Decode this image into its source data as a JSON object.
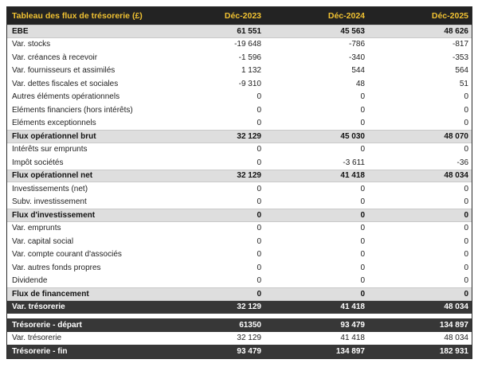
{
  "table": {
    "title": "Tableau des flux de trésorerie (£)",
    "columns": [
      "Déc-2023",
      "Déc-2024",
      "Déc-2025"
    ],
    "rows": [
      {
        "label": "EBE",
        "values": [
          "61 551",
          "45 563",
          "48 626"
        ],
        "style": "subtotal"
      },
      {
        "label": "Var. stocks",
        "values": [
          "-19 648",
          "-786",
          "-817"
        ],
        "style": "normal"
      },
      {
        "label": "Var. créances à recevoir",
        "values": [
          "-1 596",
          "-340",
          "-353"
        ],
        "style": "normal"
      },
      {
        "label": "Var. fournisseurs et assimilés",
        "values": [
          "1 132",
          "544",
          "564"
        ],
        "style": "normal"
      },
      {
        "label": "Var. dettes fiscales et sociales",
        "values": [
          "-9 310",
          "48",
          "51"
        ],
        "style": "normal"
      },
      {
        "label": "Autres éléments opérationnels",
        "values": [
          "0",
          "0",
          "0"
        ],
        "style": "normal"
      },
      {
        "label": "Eléments financiers (hors intérêts)",
        "values": [
          "0",
          "0",
          "0"
        ],
        "style": "normal"
      },
      {
        "label": "Eléments exceptionnels",
        "values": [
          "0",
          "0",
          "0"
        ],
        "style": "normal"
      },
      {
        "label": "Flux opérationnel brut",
        "values": [
          "32 129",
          "45 030",
          "48 070"
        ],
        "style": "subtotal"
      },
      {
        "label": "Intérêts sur emprunts",
        "values": [
          "0",
          "0",
          "0"
        ],
        "style": "normal"
      },
      {
        "label": "Impôt sociétés",
        "values": [
          "0",
          "-3 611",
          "-36"
        ],
        "style": "normal"
      },
      {
        "label": "Flux opérationnel net",
        "values": [
          "32 129",
          "41 418",
          "48 034"
        ],
        "style": "subtotal"
      },
      {
        "label": "Investissements (net)",
        "values": [
          "0",
          "0",
          "0"
        ],
        "style": "normal"
      },
      {
        "label": "Subv. investissement",
        "values": [
          "0",
          "0",
          "0"
        ],
        "style": "normal"
      },
      {
        "label": "Flux d'investissement",
        "values": [
          "0",
          "0",
          "0"
        ],
        "style": "subtotal"
      },
      {
        "label": "Var. emprunts",
        "values": [
          "0",
          "0",
          "0"
        ],
        "style": "normal"
      },
      {
        "label": "Var. capital social",
        "values": [
          "0",
          "0",
          "0"
        ],
        "style": "normal"
      },
      {
        "label": "Var. compte courant d'associés",
        "values": [
          "0",
          "0",
          "0"
        ],
        "style": "normal"
      },
      {
        "label": "Var. autres fonds propres",
        "values": [
          "0",
          "0",
          "0"
        ],
        "style": "normal"
      },
      {
        "label": "Dividende",
        "values": [
          "0",
          "0",
          "0"
        ],
        "style": "normal"
      },
      {
        "label": "Flux de financement",
        "values": [
          "0",
          "0",
          "0"
        ],
        "style": "subtotal"
      },
      {
        "label": "Var. trésorerie",
        "values": [
          "32 129",
          "41 418",
          "48 034"
        ],
        "style": "total"
      },
      {
        "label": "Trésorerie - départ",
        "values": [
          "61350",
          "93 479",
          "134 897"
        ],
        "style": "total"
      },
      {
        "label": "Var. trésorerie",
        "values": [
          "32 129",
          "41 418",
          "48 034"
        ],
        "style": "normal"
      },
      {
        "label": "Trésorerie - fin",
        "values": [
          "93 479",
          "134 897",
          "182 931"
        ],
        "style": "total"
      }
    ]
  },
  "colors": {
    "header_bg": "#232323",
    "header_text": "#f1c232",
    "subtotal_bg": "#dedede",
    "total_bg": "#373737",
    "total_text": "#ffffff",
    "body_text": "#1f1f1f"
  }
}
